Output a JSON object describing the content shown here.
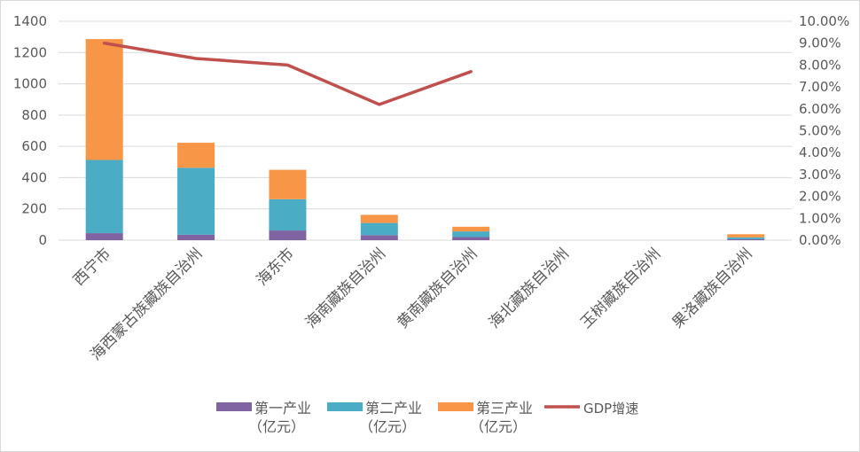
{
  "chart_data": {
    "type": "bar",
    "stacked": true,
    "categories": [
      "西宁市",
      "海西蒙古族藏族自治州",
      "海东市",
      "海南藏族自治州",
      "黄南藏族自治州",
      "海北藏族自治州",
      "玉树藏族自治州",
      "果洛藏族自治州"
    ],
    "series": [
      {
        "name": "第一产业（亿元）",
        "name_lines": [
          "第一产业",
          "（亿元）"
        ],
        "color": "#8064A2",
        "values": [
          45,
          35,
          62,
          32,
          20,
          0,
          0,
          6
        ],
        "axis": "left"
      },
      {
        "name": "第二产业（亿元）",
        "name_lines": [
          "第二产业",
          "（亿元）"
        ],
        "color": "#4BACC6",
        "values": [
          468,
          428,
          200,
          78,
          36,
          0,
          0,
          12
        ],
        "axis": "left"
      },
      {
        "name": "第三产业（亿元）",
        "name_lines": [
          "第三产业",
          "（亿元）"
        ],
        "color": "#F79646",
        "values": [
          773,
          160,
          188,
          52,
          30,
          0,
          0,
          20
        ],
        "axis": "left"
      }
    ],
    "line_series": {
      "name": "GDP增速",
      "color": "#C0504D",
      "type": "line",
      "axis": "right",
      "values": [
        0.09,
        0.083,
        0.08,
        0.062,
        0.077,
        null,
        null,
        null
      ]
    },
    "y_left": {
      "min": 0,
      "max": 1400,
      "step": 200,
      "ticks": [
        "0",
        "200",
        "400",
        "600",
        "800",
        "1000",
        "1200",
        "1400"
      ]
    },
    "y_right": {
      "min": 0,
      "max": 0.1,
      "step": 0.01,
      "ticks": [
        "0.00%",
        "1.00%",
        "2.00%",
        "3.00%",
        "4.00%",
        "5.00%",
        "6.00%",
        "7.00%",
        "8.00%",
        "9.00%",
        "10.00%"
      ]
    },
    "legend_position": "bottom",
    "grid": true,
    "gridline_color": "#d9d9d9"
  }
}
